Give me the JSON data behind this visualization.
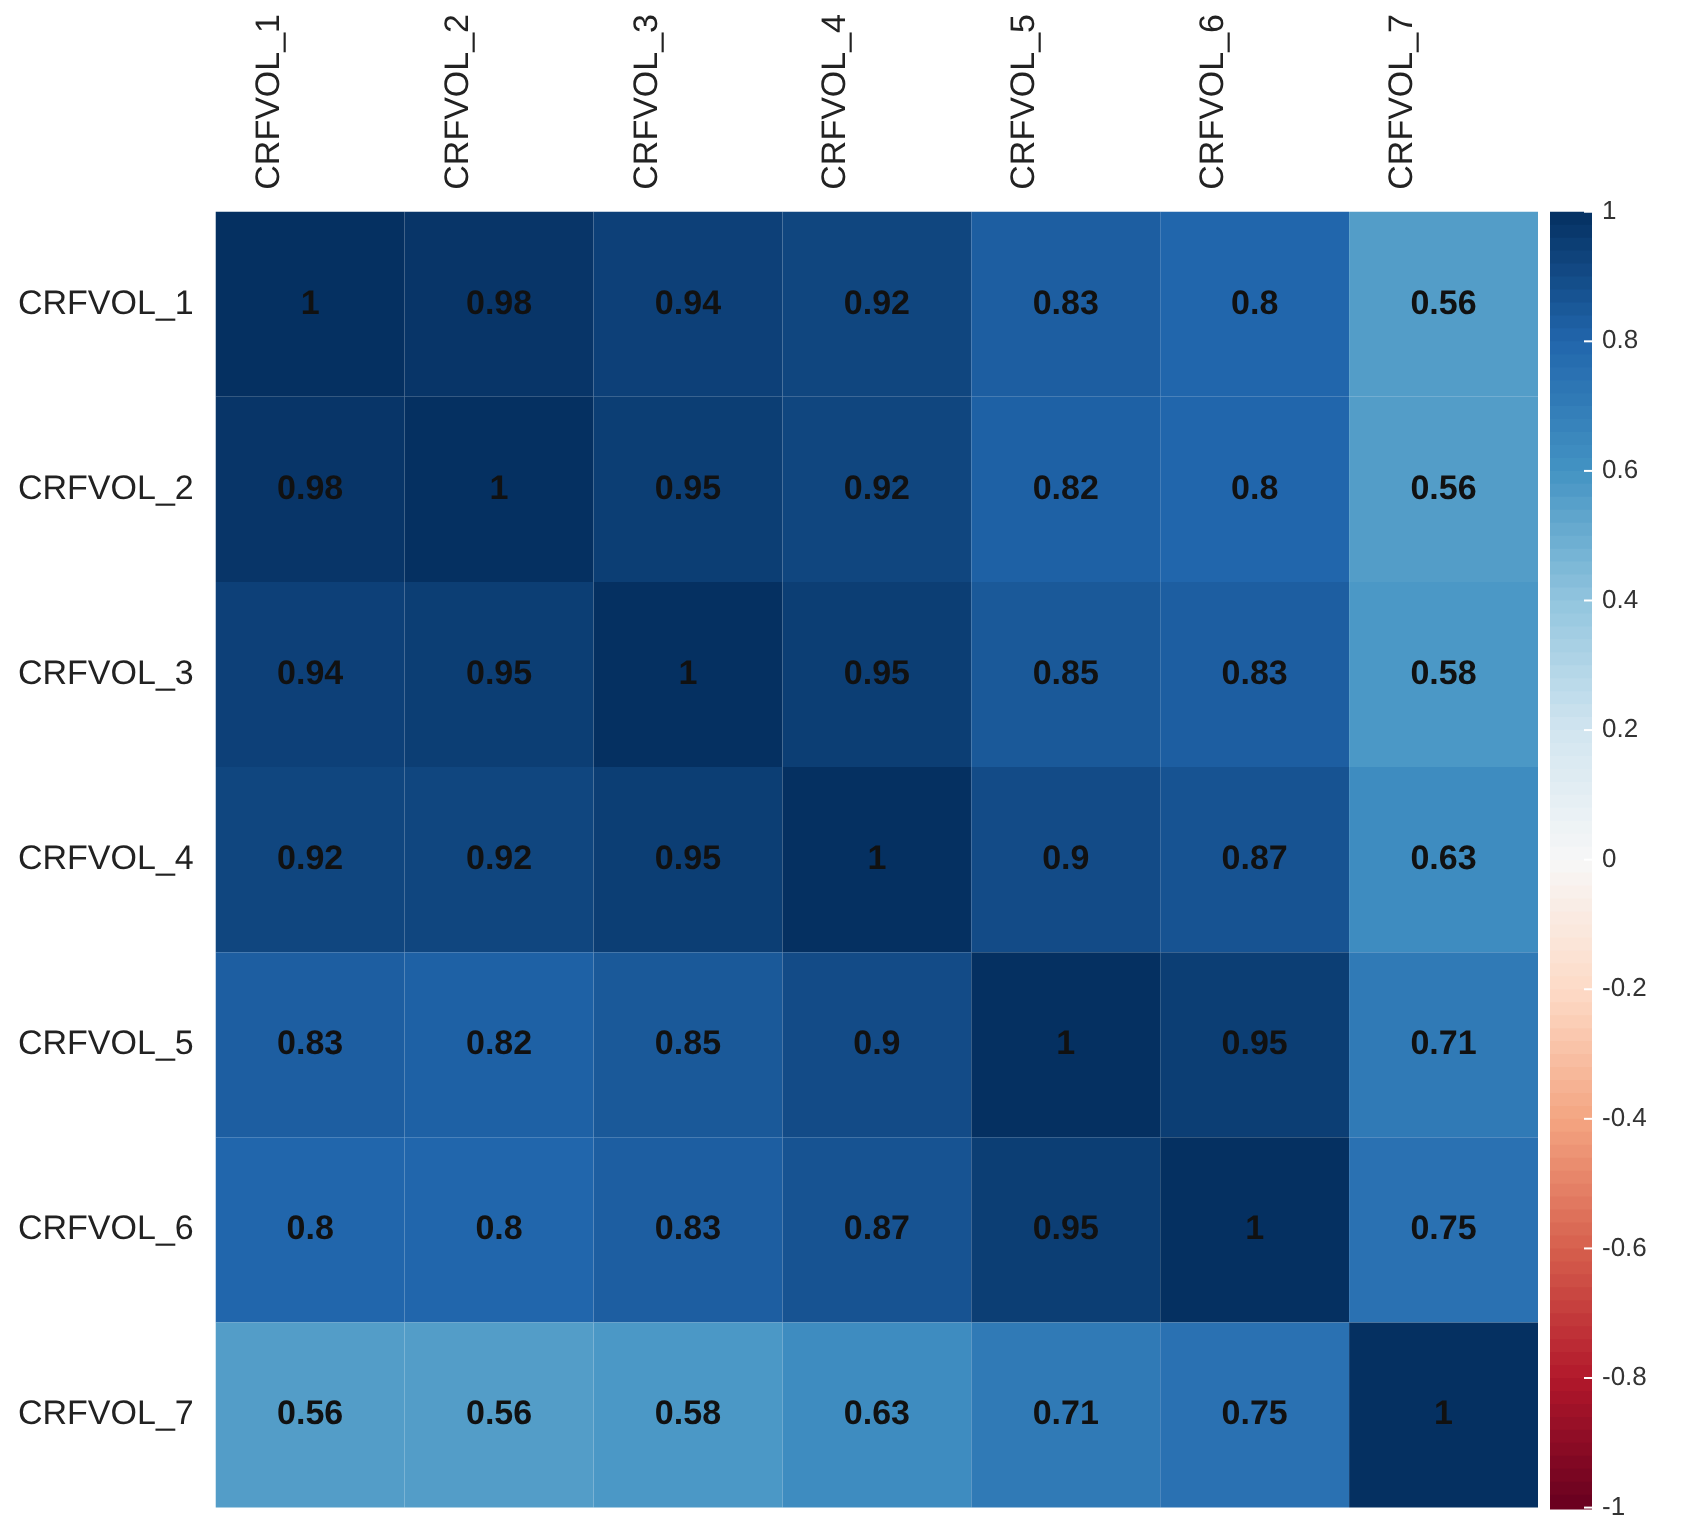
{
  "chart_data": {
    "type": "heatmap",
    "categories": [
      "CRFVOL_1",
      "CRFVOL_2",
      "CRFVOL_3",
      "CRFVOL_4",
      "CRFVOL_5",
      "CRFVOL_6",
      "CRFVOL_7"
    ],
    "y_categories": [
      "CRFVOL_1",
      "CRFVOL_2",
      "CRFVOL_3",
      "CRFVOL_4",
      "CRFVOL_5",
      "CRFVOL_6",
      "CRFVOL_7"
    ],
    "cells": [
      [
        1,
        0.98,
        0.94,
        0.92,
        0.83,
        0.8,
        0.56
      ],
      [
        0.98,
        1,
        0.95,
        0.92,
        0.82,
        0.8,
        0.56
      ],
      [
        0.94,
        0.95,
        1,
        0.95,
        0.85,
        0.83,
        0.58
      ],
      [
        0.92,
        0.92,
        0.95,
        1,
        0.9,
        0.87,
        0.63
      ],
      [
        0.83,
        0.82,
        0.85,
        0.9,
        1,
        0.95,
        0.71
      ],
      [
        0.8,
        0.8,
        0.83,
        0.87,
        0.95,
        1,
        0.75
      ],
      [
        0.56,
        0.56,
        0.58,
        0.63,
        0.71,
        0.75,
        1
      ]
    ],
    "clim": [
      -1,
      1
    ],
    "cticks": [
      1,
      0.8,
      0.6,
      0.4,
      0.2,
      0,
      -0.2,
      -0.4,
      -0.6,
      -0.8,
      -1
    ],
    "data_labels": true
  }
}
